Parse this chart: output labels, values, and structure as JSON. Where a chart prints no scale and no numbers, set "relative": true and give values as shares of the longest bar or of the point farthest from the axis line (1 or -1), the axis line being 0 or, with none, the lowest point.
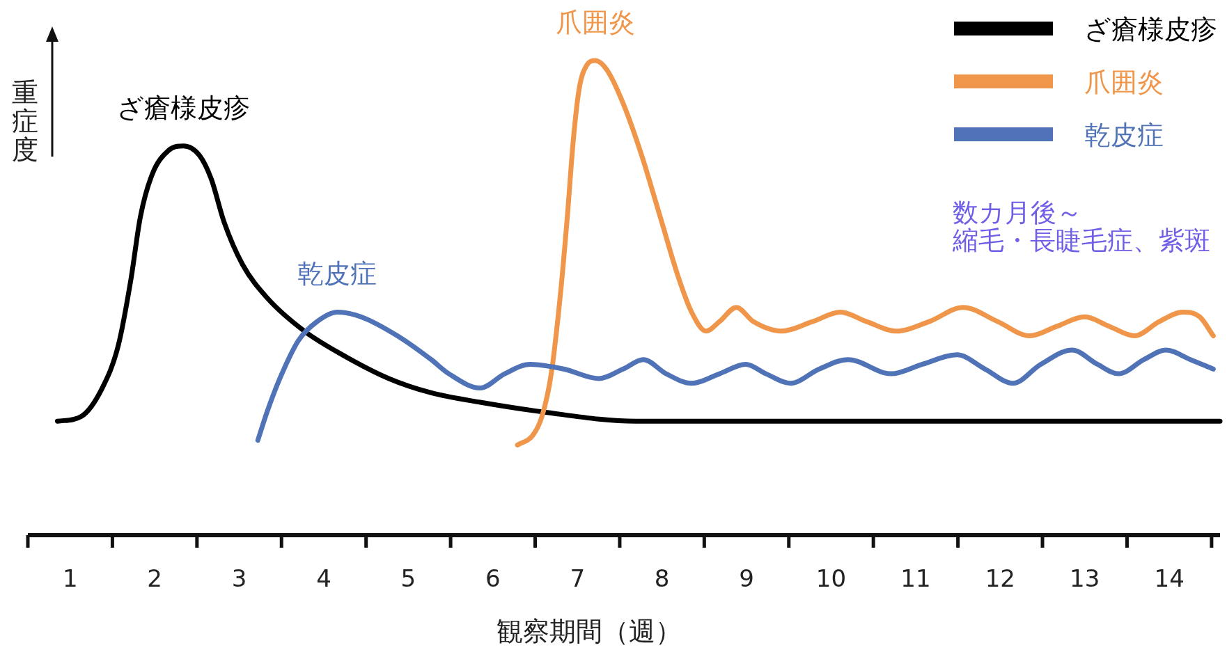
{
  "chart_data": {
    "type": "line",
    "relative": true,
    "xlabel": "観察期間（週）",
    "ylabel": "重症度",
    "xlim": [
      0.5,
      14.6
    ],
    "xticks": [
      1,
      2,
      3,
      4,
      5,
      6,
      7,
      8,
      9,
      10,
      11,
      12,
      13,
      14
    ],
    "legend": "top right",
    "annotations": [
      "数カ月後～",
      "縮毛・長睫毛症、紫斑"
    ],
    "series": [
      {
        "name": "ざ瘡様皮疹",
        "color": "#000000",
        "x": [
          0.85,
          1.13,
          1.38,
          1.57,
          1.72,
          1.83,
          1.97,
          2.16,
          2.34,
          2.53,
          2.67,
          2.82,
          3.04,
          3.33,
          3.77,
          4.22,
          4.77,
          5.27,
          5.85,
          6.58,
          7.69,
          8.79,
          10,
          12,
          14.6
        ],
        "values": [
          0.24,
          0.25,
          0.31,
          0.4,
          0.54,
          0.67,
          0.76,
          0.81,
          0.82,
          0.8,
          0.75,
          0.66,
          0.57,
          0.5,
          0.43,
          0.38,
          0.33,
          0.3,
          0.28,
          0.26,
          0.24,
          0.24,
          0.24,
          0.24,
          0.24
        ]
      },
      {
        "name": "爪囲炎",
        "color": "#f0964a",
        "x": [
          6.29,
          6.47,
          6.58,
          6.69,
          6.8,
          6.88,
          6.95,
          7.02,
          7.11,
          7.21,
          7.35,
          7.54,
          7.76,
          7.98,
          8.2,
          8.35,
          8.52,
          8.68,
          8.88,
          9.08,
          9.41,
          9.78,
          10.11,
          10.42,
          10.77,
          11.16,
          11.56,
          11.97,
          12.35,
          12.67,
          13.0,
          13.29,
          13.59,
          13.88,
          14.16,
          14.36,
          14.52
        ],
        "values": [
          0.19,
          0.21,
          0.25,
          0.34,
          0.51,
          0.67,
          0.83,
          0.94,
          0.99,
          1.0,
          0.98,
          0.91,
          0.8,
          0.67,
          0.54,
          0.47,
          0.43,
          0.45,
          0.48,
          0.45,
          0.43,
          0.45,
          0.47,
          0.45,
          0.43,
          0.45,
          0.48,
          0.45,
          0.42,
          0.44,
          0.46,
          0.44,
          0.42,
          0.45,
          0.47,
          0.46,
          0.42
        ]
      },
      {
        "name": "乾皮症",
        "color": "#4f73b6",
        "x": [
          3.22,
          3.33,
          3.48,
          3.7,
          3.92,
          4.16,
          4.44,
          4.87,
          5.27,
          5.48,
          5.85,
          6.14,
          6.44,
          6.84,
          7.25,
          7.54,
          7.78,
          8.05,
          8.35,
          8.68,
          8.99,
          9.23,
          9.52,
          9.86,
          10.2,
          10.71,
          11.08,
          11.49,
          11.82,
          12.15,
          12.48,
          12.85,
          13.15,
          13.4,
          13.7,
          13.96,
          14.25,
          14.52
        ],
        "values": [
          0.2,
          0.26,
          0.33,
          0.41,
          0.45,
          0.47,
          0.46,
          0.42,
          0.37,
          0.34,
          0.31,
          0.34,
          0.36,
          0.35,
          0.33,
          0.35,
          0.37,
          0.34,
          0.32,
          0.34,
          0.36,
          0.34,
          0.32,
          0.35,
          0.37,
          0.34,
          0.36,
          0.38,
          0.35,
          0.32,
          0.36,
          0.39,
          0.36,
          0.34,
          0.37,
          0.39,
          0.37,
          0.35
        ]
      }
    ]
  }
}
